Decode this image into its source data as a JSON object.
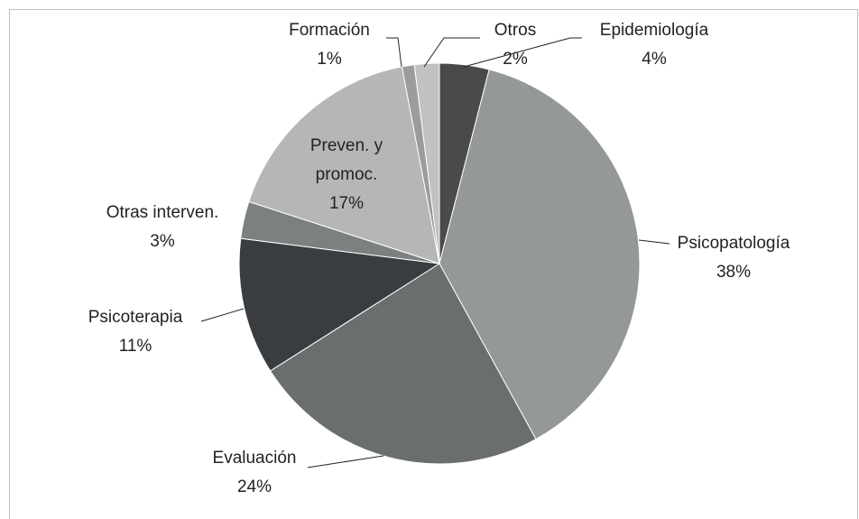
{
  "chart_data": {
    "type": "pie",
    "categories": [
      "Epidemiología",
      "Psicopatología",
      "Evaluación",
      "Psicoterapia",
      "Otras interven.",
      "Preven. y promoc.",
      "Formación",
      "Otros"
    ],
    "values": [
      4,
      38,
      24,
      11,
      3,
      17,
      1,
      2
    ],
    "value_labels": [
      "4%",
      "38%",
      "24%",
      "11%",
      "3%",
      "17%",
      "1%",
      "2%"
    ],
    "colors": [
      "#4a4a4a",
      "#959899",
      "#6b6e6f",
      "#3a3d40",
      "#7d8081",
      "#b5b7b7",
      "#9a9c9d",
      "#c0c2c2"
    ]
  }
}
